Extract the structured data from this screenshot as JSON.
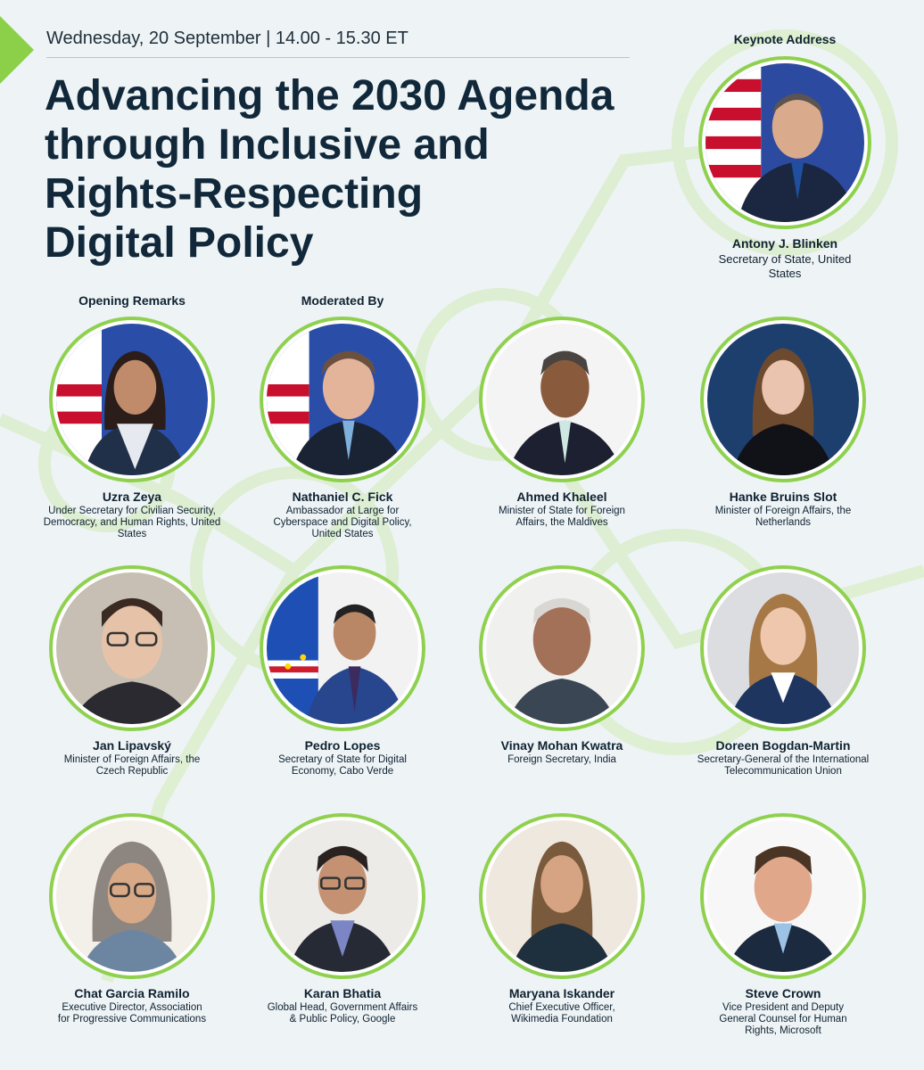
{
  "header": {
    "date_time": "Wednesday, 20 September | 14.00 - 15.30 ET",
    "title_lines": [
      "Advancing the 2030 Agenda",
      "through Inclusive and",
      "Rights-Respecting",
      "Digital Policy"
    ]
  },
  "labels": {
    "keynote": "Keynote Address",
    "opening": "Opening Remarks",
    "moderated": "Moderated By"
  },
  "speakers": [
    {
      "name": "Antony J. Blinken",
      "role": "Secretary of State, United States"
    },
    {
      "name": "Uzra Zeya",
      "role": "Under Secretary for Civilian Security, Democracy, and Human Rights, United States"
    },
    {
      "name": "Nathaniel C. Fick",
      "role": "Ambassador at Large for Cyberspace and Digital Policy, United States"
    },
    {
      "name": "Ahmed Khaleel",
      "role": "Minister of State for Foreign Affairs, the Maldives"
    },
    {
      "name": "Hanke Bruins Slot",
      "role": "Minister of Foreign Affairs, the Netherlands"
    },
    {
      "name": "Jan Lipavský",
      "role": "Minister of Foreign Affairs, the Czech Republic"
    },
    {
      "name": "Pedro Lopes",
      "role": "Secretary of State for Digital Economy, Cabo Verde"
    },
    {
      "name": "Vinay Mohan Kwatra",
      "role": "Foreign Secretary, India"
    },
    {
      "name": "Doreen Bogdan-Martin",
      "role": "Secretary-General of the International Telecommunication Union"
    },
    {
      "name": "Chat Garcia Ramilo",
      "role": "Executive Director, Association for Progressive Communications"
    },
    {
      "name": "Karan Bhatia",
      "role": "Global Head, Government Affairs & Public Policy, Google"
    },
    {
      "name": "Maryana Iskander",
      "role": "Chief Executive Officer, Wikimedia Foundation"
    },
    {
      "name": "Steve Crown",
      "role": "Vice President and Deputy General Counsel for Human Rights, Microsoft"
    }
  ],
  "colors": {
    "accent": "#8fd14f",
    "title": "#11283a",
    "background": "#eef3f6"
  }
}
